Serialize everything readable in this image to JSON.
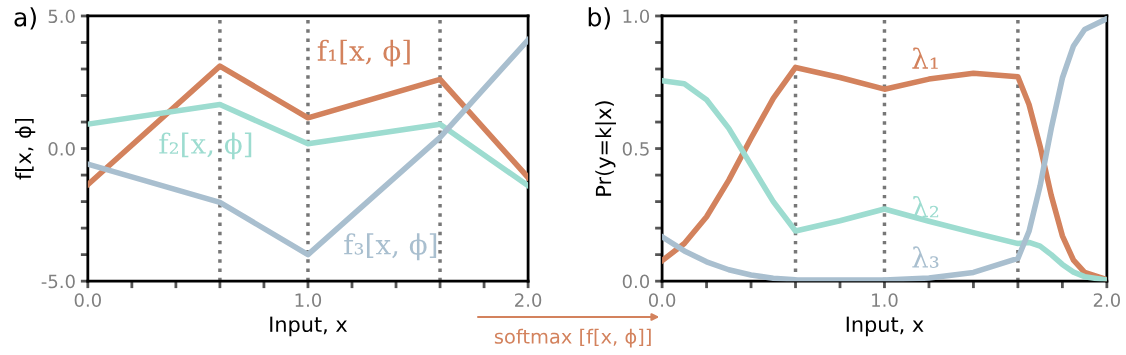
{
  "chart_data": [
    {
      "type": "line",
      "title": "a)",
      "xlabel": "Input, x",
      "ylabel": "f[x, ϕ]",
      "x": [
        0,
        0.6,
        1.0,
        1.6,
        2.0
      ],
      "series": [
        {
          "name": "f₁[x, ϕ]",
          "color": "#d3825d",
          "values": [
            -1.36,
            3.11,
            1.16,
            2.61,
            -1.09
          ]
        },
        {
          "name": "f₂[x, ϕ]",
          "color": "#9ddcd0",
          "values": [
            0.92,
            1.66,
            0.18,
            0.92,
            -1.4
          ]
        },
        {
          "name": "f₃[x, ϕ]",
          "color": "#a9bfcf",
          "values": [
            -0.59,
            -2.03,
            -4.0,
            0.42,
            4.1
          ]
        }
      ],
      "xlim": [
        0,
        2
      ],
      "ylim": [
        -5,
        5
      ],
      "xticks": [
        {
          "value": 0,
          "label": "0.0"
        },
        {
          "value": 0.2,
          "label": null
        },
        {
          "value": 0.4,
          "label": null
        },
        {
          "value": 0.6,
          "label": null
        },
        {
          "value": 0.8,
          "label": null
        },
        {
          "value": 1.0,
          "label": "1.0"
        },
        {
          "value": 1.2,
          "label": null
        },
        {
          "value": 1.4,
          "label": null
        },
        {
          "value": 1.6,
          "label": null
        },
        {
          "value": 1.8,
          "label": null
        },
        {
          "value": 2.0,
          "label": "2.0"
        }
      ],
      "yticks": [
        {
          "value": -5,
          "label": "-5.0"
        },
        {
          "value": -4,
          "label": null
        },
        {
          "value": -3,
          "label": null
        },
        {
          "value": -2,
          "label": null
        },
        {
          "value": -1,
          "label": null
        },
        {
          "value": 0,
          "label": "0.0"
        },
        {
          "value": 1,
          "label": null
        },
        {
          "value": 2,
          "label": null
        },
        {
          "value": 3,
          "label": null
        },
        {
          "value": 4,
          "label": null
        },
        {
          "value": 5,
          "label": "5.0"
        }
      ],
      "ref_lines": [
        {
          "axis": "x",
          "value": 0.6,
          "color": "#777777",
          "line_style": "dotted"
        },
        {
          "axis": "x",
          "value": 1.0,
          "color": "#777777",
          "line_style": "dotted"
        },
        {
          "axis": "x",
          "value": 1.6,
          "color": "#777777",
          "line_style": "dotted"
        }
      ],
      "grid": false,
      "legend": false,
      "marker": "none",
      "line_style": "solid"
    },
    {
      "type": "line",
      "title": "b)",
      "xlabel": "Input, x",
      "ylabel": "Pr(y=k|x)",
      "x": [
        0,
        0.1,
        0.2,
        0.3,
        0.4,
        0.5,
        0.6,
        0.8,
        1.0,
        1.2,
        1.4,
        1.6,
        1.65,
        1.7,
        1.75,
        1.8,
        1.85,
        1.9,
        2.0
      ],
      "series": [
        {
          "name": "λ₁",
          "color": "#d3825d",
          "values": [
            0.077,
            0.142,
            0.243,
            0.381,
            0.539,
            0.689,
            0.806,
            0.768,
            0.724,
            0.762,
            0.784,
            0.771,
            0.666,
            0.508,
            0.323,
            0.171,
            0.079,
            0.033,
            0.006
          ]
        },
        {
          "name": "λ₂",
          "color": "#9ddcd0",
          "values": [
            0.756,
            0.744,
            0.684,
            0.576,
            0.438,
            0.3,
            0.189,
            0.228,
            0.272,
            0.226,
            0.183,
            0.142,
            0.146,
            0.132,
            0.1,
            0.063,
            0.034,
            0.017,
            0.004
          ]
        },
        {
          "name": "λ₃",
          "color": "#a9bfcf",
          "values": [
            0.167,
            0.114,
            0.073,
            0.043,
            0.023,
            0.011,
            0.005,
            0.004,
            0.004,
            0.012,
            0.033,
            0.086,
            0.188,
            0.36,
            0.576,
            0.766,
            0.887,
            0.949,
            0.99
          ]
        }
      ],
      "xlim": [
        0,
        2
      ],
      "ylim": [
        0,
        1
      ],
      "xticks": [
        {
          "value": 0,
          "label": "0.0"
        },
        {
          "value": 0.2,
          "label": null
        },
        {
          "value": 0.4,
          "label": null
        },
        {
          "value": 0.6,
          "label": null
        },
        {
          "value": 0.8,
          "label": null
        },
        {
          "value": 1.0,
          "label": "1.0"
        },
        {
          "value": 1.2,
          "label": null
        },
        {
          "value": 1.4,
          "label": null
        },
        {
          "value": 1.6,
          "label": null
        },
        {
          "value": 1.8,
          "label": null
        },
        {
          "value": 2.0,
          "label": "2.0"
        }
      ],
      "yticks": [
        {
          "value": 0,
          "label": "0.0"
        },
        {
          "value": 0.1,
          "label": null
        },
        {
          "value": 0.2,
          "label": null
        },
        {
          "value": 0.3,
          "label": null
        },
        {
          "value": 0.4,
          "label": null
        },
        {
          "value": 0.5,
          "label": "0.5"
        },
        {
          "value": 0.6,
          "label": null
        },
        {
          "value": 0.7,
          "label": null
        },
        {
          "value": 0.8,
          "label": null
        },
        {
          "value": 0.9,
          "label": null
        },
        {
          "value": 1.0,
          "label": "1.0"
        }
      ],
      "ref_lines": [
        {
          "axis": "x",
          "value": 0.6,
          "color": "#777777",
          "line_style": "dotted"
        },
        {
          "axis": "x",
          "value": 1.0,
          "color": "#777777",
          "line_style": "dotted"
        },
        {
          "axis": "x",
          "value": 1.6,
          "color": "#777777",
          "line_style": "dotted"
        }
      ],
      "annotations": [
        "softmax [f[x, ϕ]]"
      ],
      "grid": false,
      "legend": false,
      "marker": "none",
      "line_style": "solid"
    }
  ]
}
